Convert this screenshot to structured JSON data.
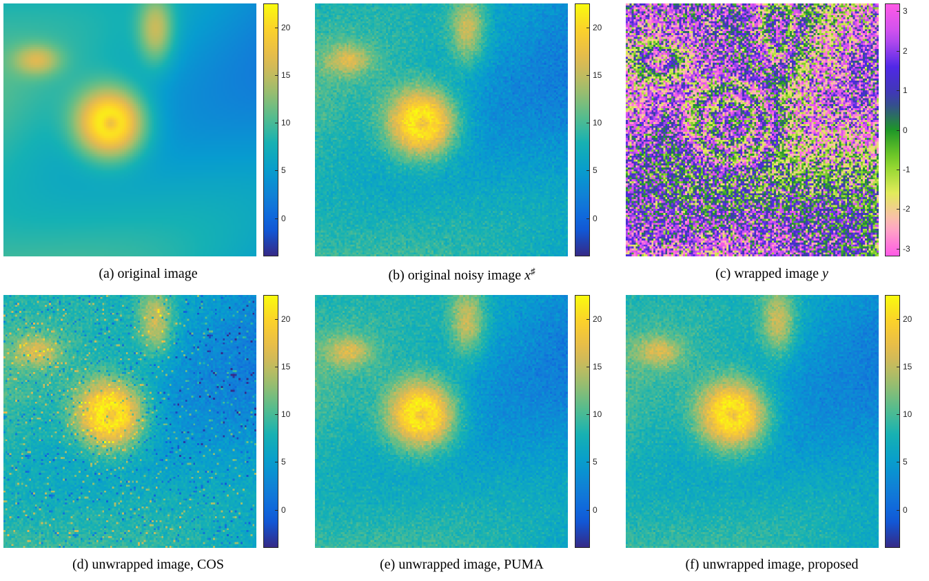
{
  "panels": [
    {
      "id": "a",
      "caption": "(a) original image",
      "colormap": "parula",
      "kind": "smooth",
      "ticks": [
        "20",
        "15",
        "10",
        "5",
        "0"
      ],
      "tick_values": [
        20,
        15,
        10,
        5,
        0
      ],
      "range": [
        -4,
        22.5
      ]
    },
    {
      "id": "b",
      "caption": "(b) original noisy image",
      "caption_math": "x",
      "caption_sup": "♯",
      "colormap": "parula",
      "kind": "noisy",
      "ticks": [
        "20",
        "15",
        "10",
        "5",
        "0"
      ],
      "tick_values": [
        20,
        15,
        10,
        5,
        0
      ],
      "range": [
        -4,
        22.5
      ]
    },
    {
      "id": "c",
      "caption": "(c) wrapped image",
      "caption_math": "y",
      "colormap": "wrapped",
      "kind": "wrapped",
      "ticks": [
        "3",
        "2",
        "1",
        "0",
        "-1",
        "-2",
        "-3"
      ],
      "tick_values": [
        3,
        2,
        1,
        0,
        -1,
        -2,
        -3
      ],
      "range": [
        -3.2,
        3.2
      ]
    },
    {
      "id": "d",
      "caption": "(d) unwrapped image, COS",
      "colormap": "parula",
      "kind": "cos",
      "ticks": [
        "20",
        "15",
        "10",
        "5",
        "0"
      ],
      "tick_values": [
        20,
        15,
        10,
        5,
        0
      ],
      "range": [
        -4,
        22.5
      ]
    },
    {
      "id": "e",
      "caption": "(e) unwrapped image, PUMA",
      "colormap": "parula",
      "kind": "puma",
      "ticks": [
        "20",
        "15",
        "10",
        "5",
        "0"
      ],
      "tick_values": [
        20,
        15,
        10,
        5,
        0
      ],
      "range": [
        -4,
        22.5
      ]
    },
    {
      "id": "f",
      "caption": "(f) unwrapped image, proposed",
      "colormap": "parula",
      "kind": "proposed",
      "ticks": [
        "20",
        "15",
        "10",
        "5",
        "0"
      ],
      "tick_values": [
        20,
        15,
        10,
        5,
        0
      ],
      "range": [
        -4,
        22.5
      ]
    }
  ]
}
